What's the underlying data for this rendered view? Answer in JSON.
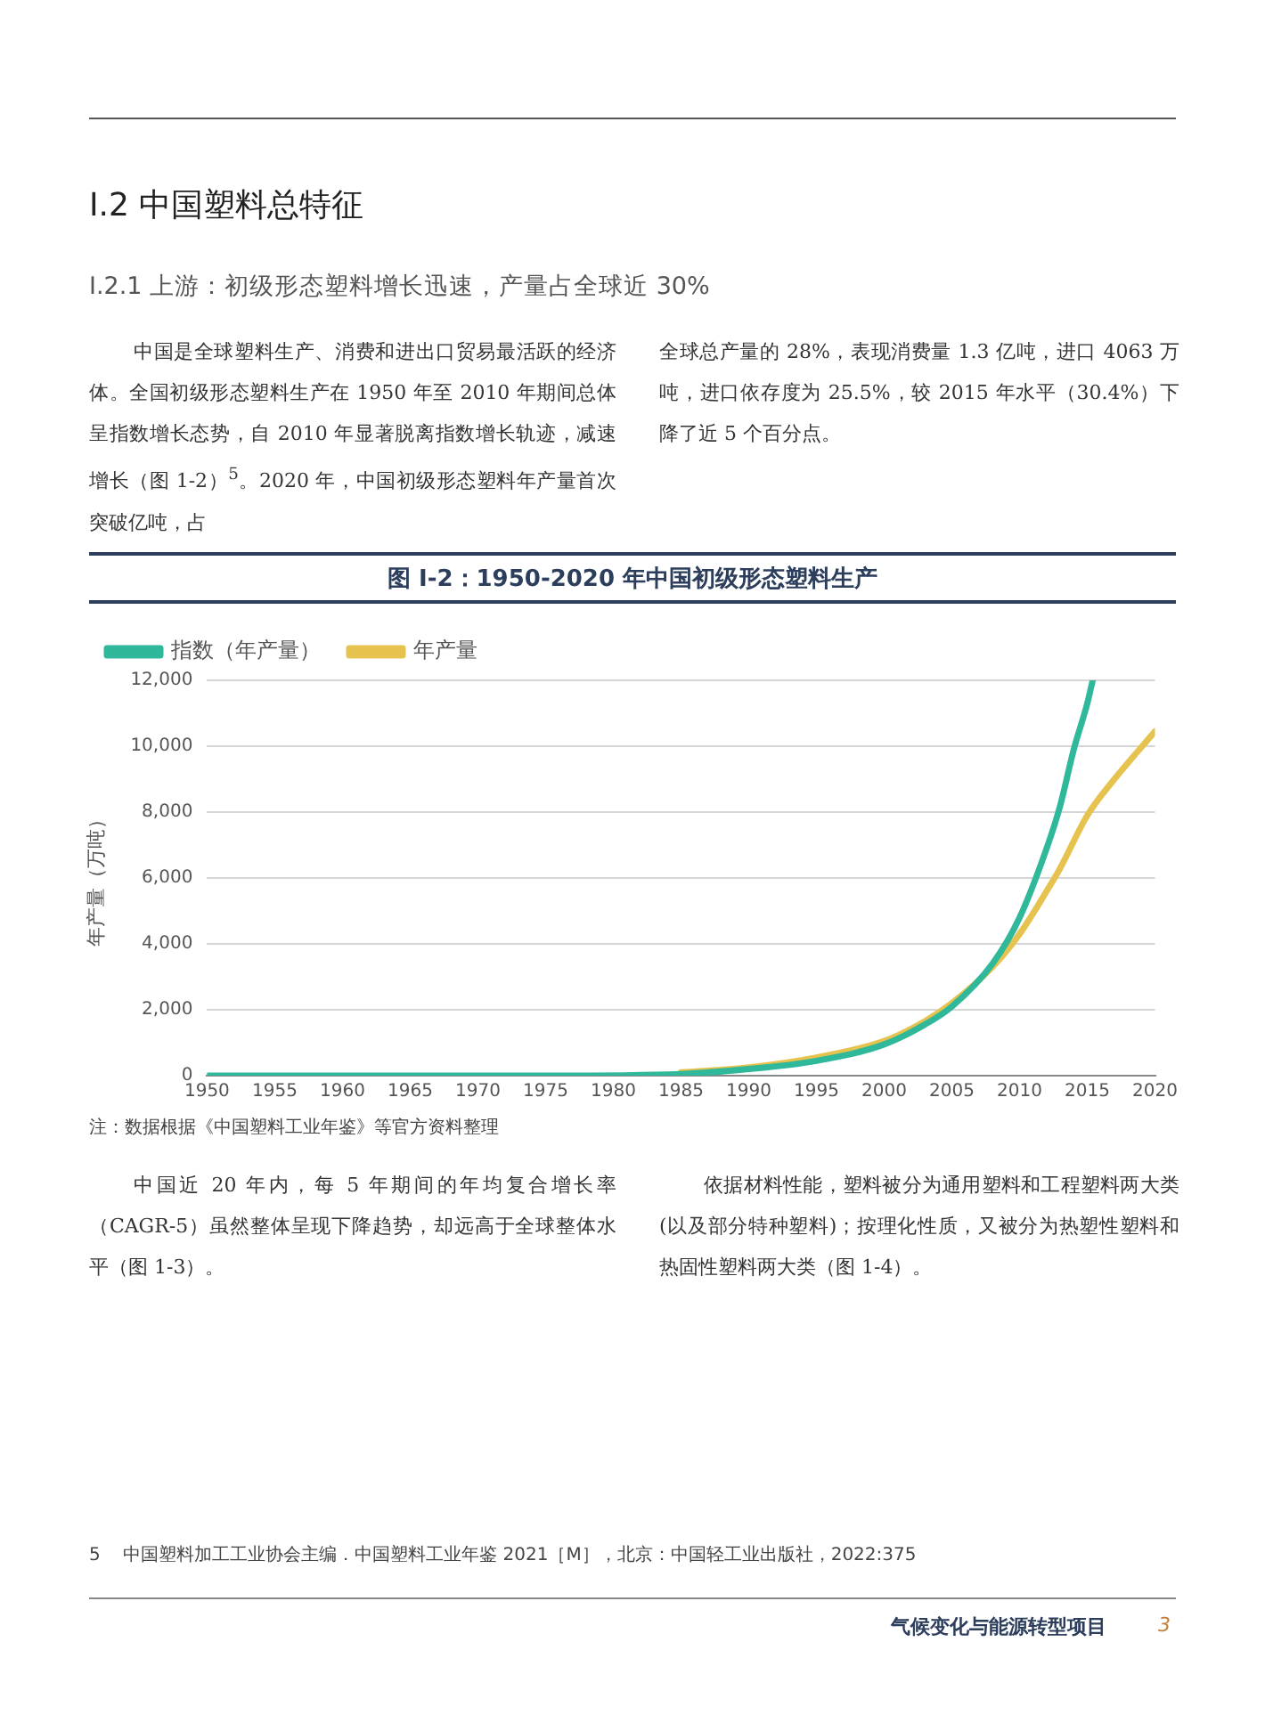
{
  "chart_data": {
    "type": "line",
    "title": "图 I-2：1950-2020 年中国初级形态塑料生产",
    "ylabel": "年产量（万吨）",
    "annotations": [
      "I.2  中国塑料总特征",
      "I.2.1  上游：初级形态塑料增长迅速，产量占全球近 30%",
      "中国是全球塑料生产、消费和进出口贸易最活跃的经济体。全国初级形态塑料生产在 1950 年至 2010 年期间总体呈指数增长态势，自 2010 年显著脱离指数增长轨迹，减速增长（图 1-2）$^{5}$。2020 年，中国初级形态塑料年产量首次突破亿吨，占",
      "全球总产量的 28%，表现消费量 1.3 亿吨，进口 4063 万吨，进口依存度为 25.5%，较 2015 年水平（30.4%）下降了近 5 个百分点。",
      "注：数据根据《中国塑料工业年鉴》等官方资料整理",
      "中国近 20 年内，每 5 年期间的年均复合增长率（CAGR-5）虽然整体呈现下降趋势，却远高于全球整体水平（图 1-3）。",
      "依据材料性能，塑料被分为通用塑料和工程塑料两大类(以及部分特种塑料)；按理化性质，又被分为热塑性塑料和热固性塑料两大类（图 1-4）。",
      "5    中国塑料加工工业协会主编．中国塑料工业年鉴 2021［M］，北京：中国轻工业出版社，2022:375",
      "气候变化与能源转型项目",
      "3"
    ],
    "xlim": [
      1950,
      2020
    ],
    "xticks": [
      1950,
      1955,
      1960,
      1965,
      1970,
      1975,
      1980,
      1985,
      1990,
      1995,
      2000,
      2005,
      2010,
      2015,
      2020
    ],
    "ylim": [
      0,
      12000
    ],
    "yticks": [
      {
        "value": 0,
        "label": "0"
      },
      {
        "value": 2000,
        "label": "2,000"
      },
      {
        "value": 4000,
        "label": "4,000"
      },
      {
        "value": 6000,
        "label": "6,000"
      },
      {
        "value": 8000,
        "label": "8,000"
      },
      {
        "value": 10000,
        "label": "10,000"
      },
      {
        "value": 12000,
        "label": "12,000"
      }
    ],
    "grid": "y",
    "legend": "top left",
    "marker": "none",
    "line_style": "solid",
    "series": [
      {
        "name": "年产量",
        "color": "#e6c34f",
        "x": [
          1985,
          1990,
          1995,
          2000,
          2003,
          2005,
          2008,
          2010,
          2012,
          2013,
          2015,
          2017,
          2020
        ],
        "values": [
          100,
          250,
          550,
          1050,
          1650,
          2200,
          3300,
          4300,
          5600,
          6300,
          7900,
          9000,
          10450
        ]
      },
      {
        "name": "指数（年产量）",
        "color": "#2fb89a",
        "x": [
          1950,
          1965,
          1975,
          1985,
          1990,
          1995,
          2000,
          2003,
          2005,
          2008,
          2010,
          2012,
          2013,
          2014,
          2015,
          2015.4
        ],
        "values": [
          0,
          0,
          0,
          50,
          200,
          450,
          950,
          1550,
          2100,
          3400,
          4800,
          6900,
          8200,
          9900,
          11300,
          12000
        ]
      }
    ]
  }
}
